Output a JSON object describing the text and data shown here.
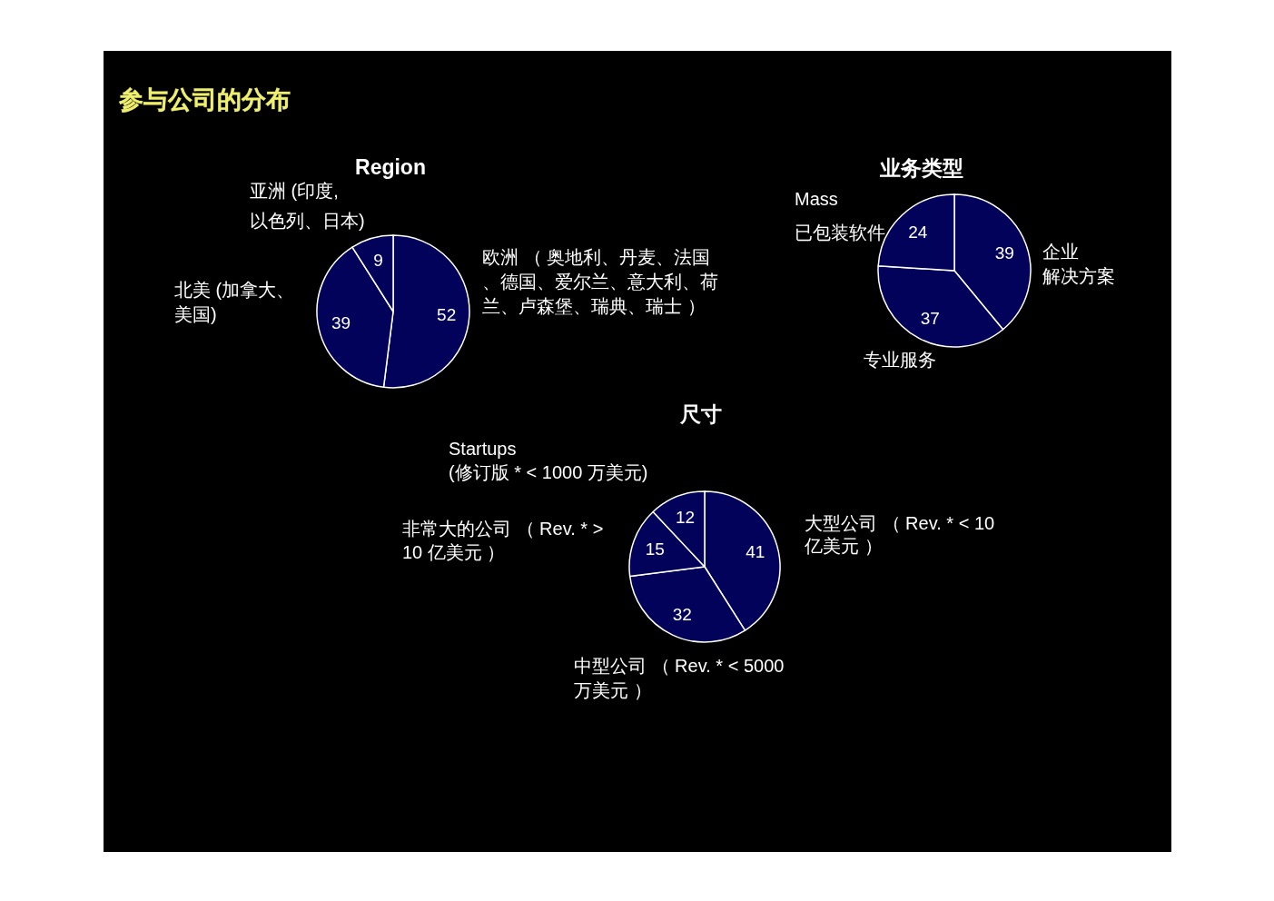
{
  "chart_data": [
    {
      "type": "pie",
      "title": "Region",
      "categories": [
        "欧洲 （ 奥地利、丹麦、法国、德国、爱尔兰、意大利、荷兰、卢森堡、瑞典、瑞士 ）",
        "北美 (加拿大、美国)",
        "亚洲 (印度,\n以色列、日本)"
      ],
      "values": [
        52,
        39,
        9
      ],
      "colors": [
        "#02025a",
        "#02025a",
        "#02025a"
      ],
      "data_labels": true,
      "annotations": [
        "参与公司的分布"
      ]
    },
    {
      "type": "pie",
      "title": "业务类型",
      "categories": [
        "企业解决方案",
        "专业服务",
        "Mass\n已包装软件"
      ],
      "values": [
        39,
        37,
        24
      ],
      "colors": [
        "#02025a",
        "#02025a",
        "#02025a"
      ],
      "data_labels": true
    },
    {
      "type": "pie",
      "title": "尺寸",
      "categories": [
        "大型公司 （ Rev. * < 10\n亿美元 ）",
        "中型公司 （ Rev. * < 5000\n万美元 ）",
        "非常大的公司 （ Rev. * >\n10 亿美元 ）",
        "Startups\n(修订版 * < 1000 万美元)"
      ],
      "values": [
        41,
        32,
        15,
        12
      ],
      "colors": [
        "#02025a",
        "#02025a",
        "#02025a",
        "#02025a"
      ],
      "data_labels": true
    }
  ]
}
